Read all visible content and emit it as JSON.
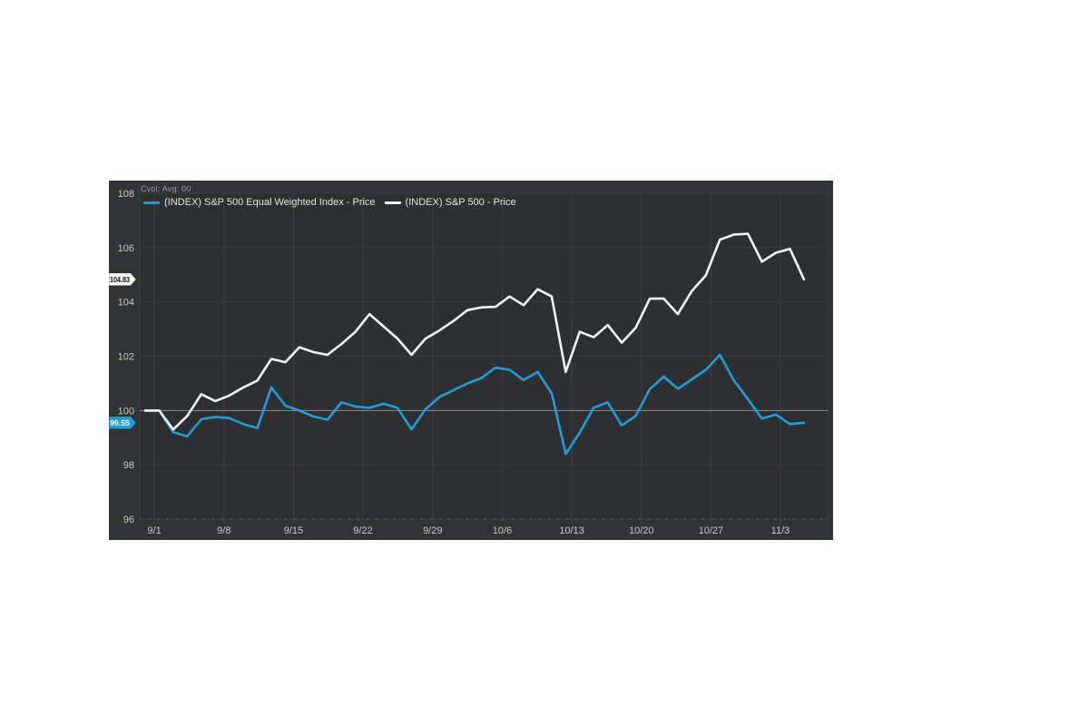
{
  "chart": {
    "indicator_label": "Cvol: Avg: 00",
    "colors": {
      "panel_bg": "#323334",
      "plot_bg": "#2e2f30",
      "plot_border": "#3c3d3e",
      "grid_vertical": "#3f4041",
      "grid_horizontal": "#38393a",
      "baseline_100": "#8a8a8a",
      "axis_dotted": "#7a7a7a",
      "tick_text": "#c8c8c8",
      "blue_series": "#1d9fd9",
      "white_series": "#f2f3f4",
      "badge_white_bg": "#f5f5f5",
      "badge_white_text": "#111111",
      "badge_blue_text": "#ffffff"
    }
  },
  "chart_data": {
    "type": "line",
    "title": "",
    "xlabel": "",
    "ylabel": "",
    "ylim": [
      96,
      108
    ],
    "y_ticks": [
      96,
      98,
      100,
      102,
      104,
      106,
      108
    ],
    "x_tick_labels": [
      "9/1",
      "9/8",
      "9/15",
      "9/22",
      "9/29",
      "10/6",
      "10/13",
      "10/20",
      "10/27",
      "11/3"
    ],
    "x_tick_positions": [
      0.65,
      5.62,
      10.58,
      15.54,
      20.51,
      25.47,
      30.43,
      35.4,
      40.36,
      45.32
    ],
    "baseline_value": 100,
    "grid": "vertical weekly lines, faint horizontal lines every 2 units, solid gray line at 100, dotted bottom axis",
    "legend_position": "top-left",
    "series": [
      {
        "name": "(INDEX) S&P 500 Equal Weighted Index - Price",
        "color": "#1d9fd9",
        "last_label": "99.55",
        "values": [
          100.0,
          100.0,
          99.2,
          99.05,
          99.68,
          99.76,
          99.72,
          99.5,
          99.35,
          100.85,
          100.18,
          100.0,
          99.78,
          99.66,
          100.3,
          100.15,
          100.1,
          100.25,
          100.1,
          99.31,
          100.05,
          100.5,
          100.75,
          101.0,
          101.2,
          101.58,
          101.5,
          101.12,
          101.42,
          100.64,
          98.4,
          99.18,
          100.11,
          100.3,
          99.45,
          99.8,
          100.79,
          101.25,
          100.8,
          101.15,
          101.5,
          102.05,
          101.11,
          100.42,
          99.7,
          99.85,
          99.5,
          99.55
        ]
      },
      {
        "name": "(INDEX) S&P 500 - Price",
        "color": "#f2f3f4",
        "last_label": "104.83",
        "values": [
          100.0,
          100.0,
          99.3,
          99.8,
          100.6,
          100.35,
          100.55,
          100.85,
          101.1,
          101.9,
          101.78,
          102.33,
          102.15,
          102.05,
          102.45,
          102.9,
          103.55,
          103.1,
          102.65,
          102.05,
          102.65,
          102.95,
          103.3,
          103.7,
          103.8,
          103.82,
          104.2,
          103.88,
          104.47,
          104.2,
          101.42,
          102.9,
          102.7,
          103.15,
          102.5,
          103.05,
          104.12,
          104.12,
          103.55,
          104.4,
          104.98,
          106.29,
          106.48,
          106.51,
          105.48,
          105.81,
          105.95,
          104.83
        ]
      }
    ]
  }
}
